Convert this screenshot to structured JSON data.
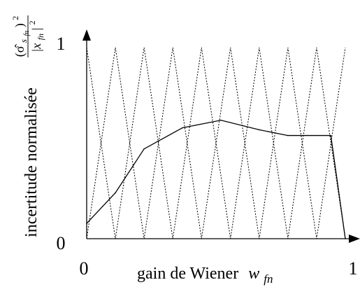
{
  "chart_data": {
    "type": "line",
    "xlabel": "gain de Wiener",
    "xlabel_symbol": "w",
    "xlabel_subscript": "fn",
    "ylabel": "incertitude normalisée",
    "ylabel_formula": {
      "numerator": "(σ̂",
      "numerator_sub": "s",
      "numerator_subsub": "fn",
      "numerator_end": ")",
      "numerator_power": "2",
      "denominator": "|x",
      "denominator_sub": "fn",
      "denominator_end": "|",
      "denominator_power": "2"
    },
    "xlim": [
      0,
      1
    ],
    "ylim": [
      0,
      1
    ],
    "x_ticks": [
      "0",
      "1"
    ],
    "y_ticks": [
      "0",
      "1"
    ],
    "grid": false,
    "legend": "none",
    "series": [
      {
        "style": "solid",
        "x": [
          0,
          0.111,
          0.222,
          0.37,
          0.519,
          0.667,
          0.778,
          0.944,
          1.0
        ],
        "y": [
          0.08,
          0.24,
          0.47,
          0.58,
          0.62,
          0.57,
          0.54,
          0.54,
          0.0
        ]
      }
    ],
    "background_curves": {
      "style": "dotted",
      "description_free": true,
      "zigzag_x": [
        0,
        0.111,
        0.222,
        0.333,
        0.444,
        0.556,
        0.667,
        0.778,
        0.889,
        1.0
      ],
      "zigzag_a_y": [
        1,
        0,
        1,
        0,
        1,
        0,
        1,
        0,
        1,
        0
      ],
      "zigzag_b_y": [
        0,
        1,
        0,
        1,
        0,
        1,
        0,
        1,
        0,
        1
      ]
    },
    "colors": {
      "axis": "#000000",
      "line": "#000000",
      "dotted": "#000000"
    }
  }
}
